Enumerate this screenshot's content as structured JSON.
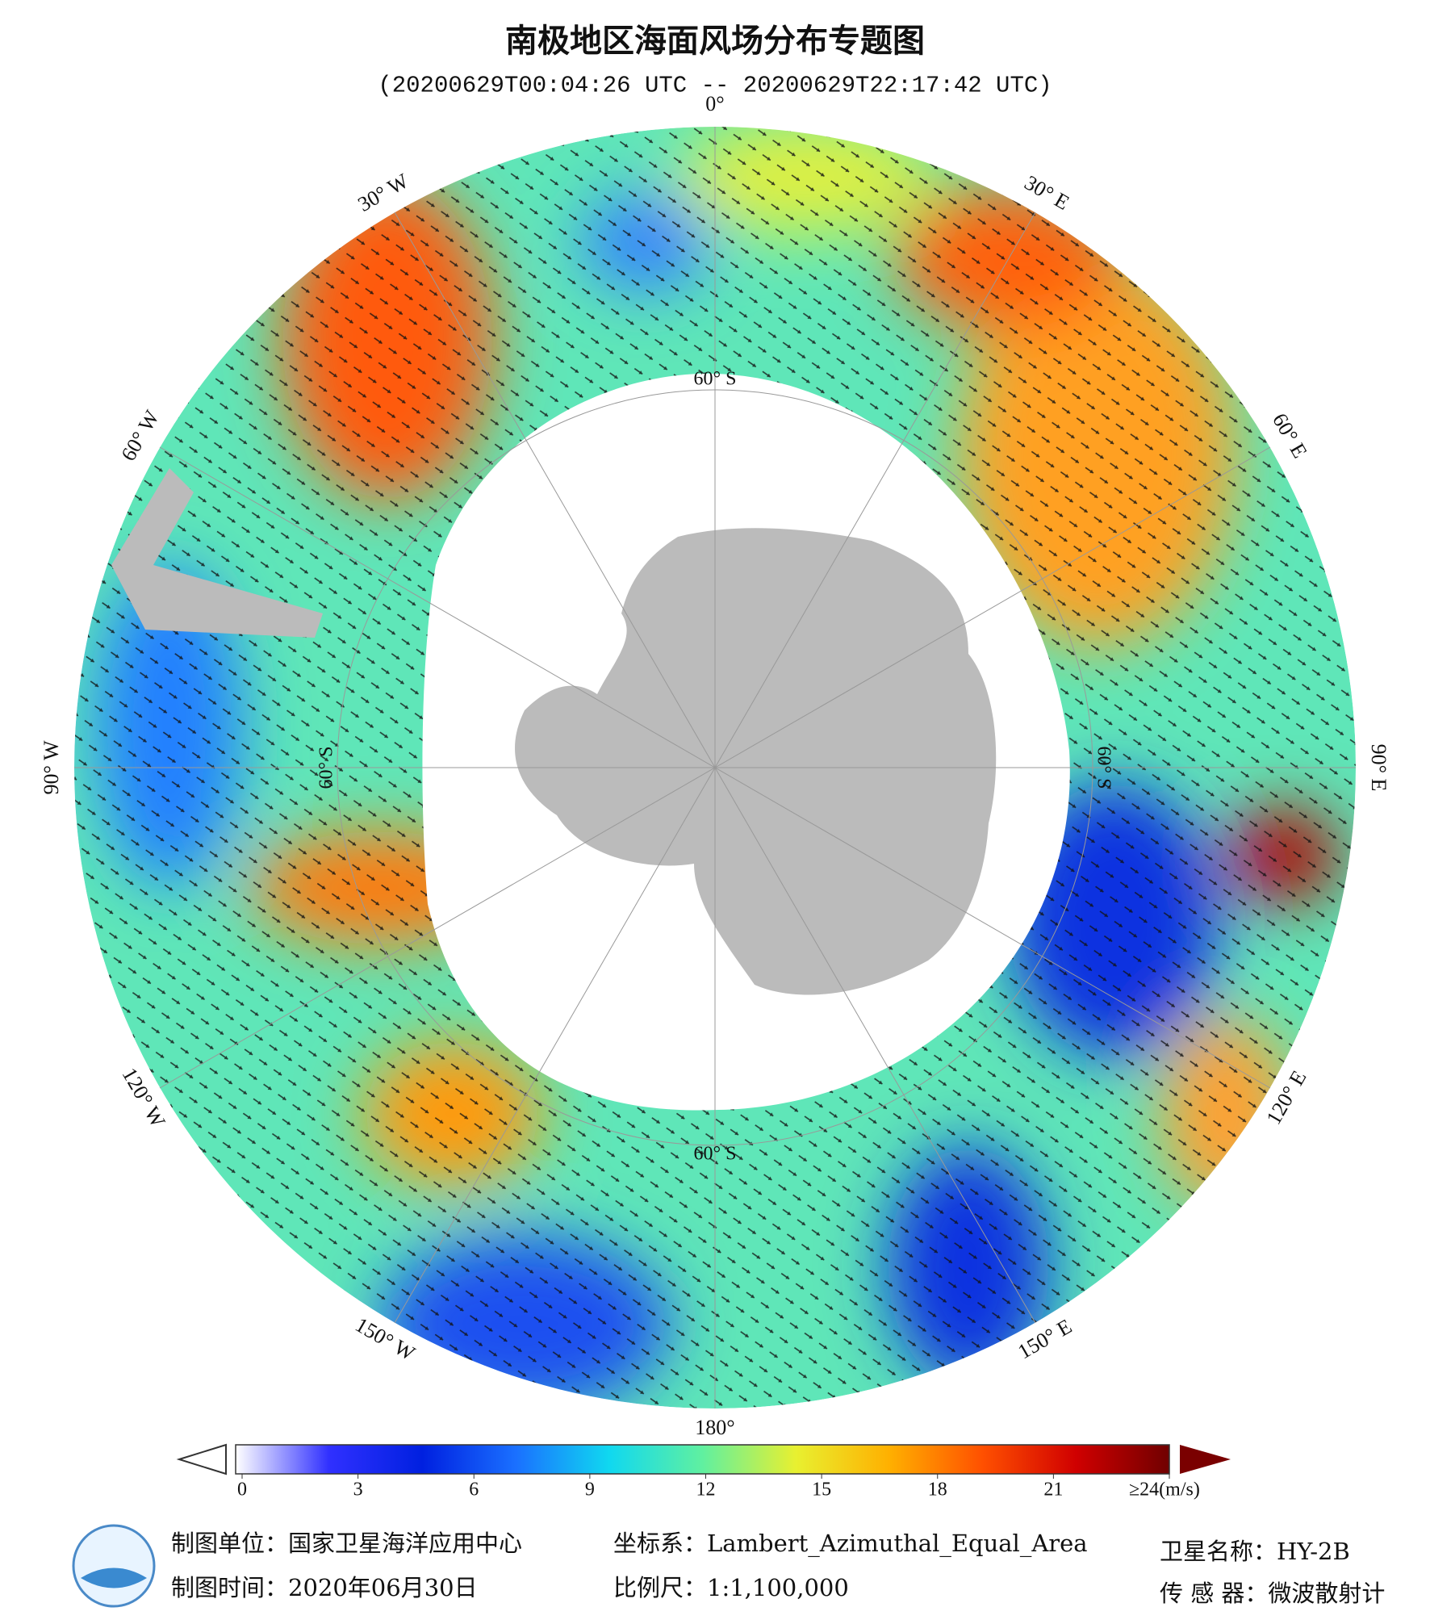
{
  "header": {
    "title": "南极地区海面风场分布专题图",
    "subtitle": "(20200629T00:04:26 UTC -- 20200629T22:17:42 UTC)"
  },
  "map": {
    "lon_labels": [
      "0°",
      "30° E",
      "60° E",
      "90° E",
      "120° E",
      "150° E",
      "180°",
      "150° W",
      "120° W",
      "90° W",
      "60° W",
      "30° W"
    ],
    "lat_labels": [
      "60° S",
      "60° S",
      "60° S",
      "60° S"
    ]
  },
  "colorbar": {
    "range": [
      0,
      24
    ],
    "ticks": [
      0,
      3,
      6,
      9,
      12,
      15,
      18,
      21,
      {
        "value": 24,
        "label": "≥24(m/s)"
      }
    ]
  },
  "footer": {
    "unit": "制图单位：国家卫星海洋应用中心",
    "date": "制图时间：2020年06月30日",
    "projection": "坐标系：Lambert_Azimuthal_Equal_Area",
    "scale": "比例尺：1:1,100,000",
    "satellite": "卫星名称：HY-2B",
    "sensor": "传 感 器：微波散射计"
  }
}
